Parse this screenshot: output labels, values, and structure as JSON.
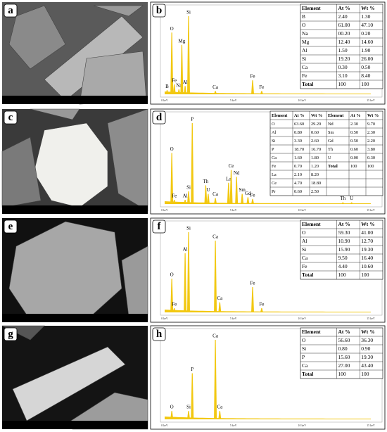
{
  "images": [
    {
      "letter": "a"
    },
    {
      "letter": "c"
    },
    {
      "letter": "e"
    },
    {
      "letter": "g"
    }
  ],
  "spectra": [
    {
      "letter": "b",
      "axis_labels": [
        "0 keV",
        "5 keV",
        "10 keV",
        "15 keV"
      ],
      "peak_labels": [
        "B",
        "O",
        "Fe",
        "Na",
        "Mg",
        "Al",
        "Si",
        "Ca",
        "Fe",
        "Fe"
      ],
      "table": {
        "header": [
          "Element",
          "At %",
          "Wt %"
        ],
        "rows": [
          [
            "B",
            "2.40",
            "1.30"
          ],
          [
            "O",
            "61.00",
            "47.10"
          ],
          [
            "Na",
            "00.20",
            "0.20"
          ],
          [
            "Mg",
            "12.40",
            "14.60"
          ],
          [
            "Al",
            "1.50",
            "1.90"
          ],
          [
            "Si",
            "19.20",
            "26.00"
          ],
          [
            "Ca",
            "0.30",
            "0.50"
          ],
          [
            "Fe",
            "3.10",
            "8.40"
          ],
          [
            "Total",
            "100",
            "100"
          ]
        ]
      }
    },
    {
      "letter": "d",
      "axis_labels": [
        "0 keV",
        "5 keV",
        "10 keV",
        "15 keV"
      ],
      "peak_labels": [
        "O",
        "Fe",
        "Al",
        "Si",
        "P",
        "Th",
        "U",
        "Ca",
        "La",
        "Ce",
        "Nd",
        "Sm",
        "Gd",
        "Fe",
        "Th",
        "U"
      ],
      "table": {
        "header": [
          "Element",
          "At %",
          "Wt %",
          "Element",
          "At %",
          "Wt %"
        ],
        "rows": [
          [
            "O",
            "63.60",
            "29.20",
            "Nd",
            "2.30",
            "9.70"
          ],
          [
            "Al",
            "0.80",
            "0.60",
            "Sm",
            "0.50",
            "2.30"
          ],
          [
            "Si",
            "3.30",
            "2.60",
            "Gd",
            "0.50",
            "2.20"
          ],
          [
            "P",
            "18.70",
            "16.70",
            "Th",
            "0.60",
            "3.80"
          ],
          [
            "Ca",
            "1.60",
            "1.80",
            "U",
            "0.00",
            "0.30"
          ],
          [
            "Fe",
            "0.70",
            "1.20",
            "Total",
            "100",
            "100"
          ],
          [
            "La",
            "2.10",
            "8.20"
          ],
          [
            "Ce",
            "4.70",
            "18.80"
          ],
          [
            "Pr",
            "0.60",
            "2.50"
          ]
        ]
      }
    },
    {
      "letter": "f",
      "axis_labels": [
        "0 keV",
        "5 keV",
        "10 keV",
        "15 keV"
      ],
      "peak_labels": [
        "O",
        "Fe",
        "Al",
        "Si",
        "Ca",
        "Ca",
        "Fe",
        "Fe"
      ],
      "table": {
        "header": [
          "Element",
          "At %",
          "Wt %"
        ],
        "rows": [
          [
            "O",
            "59.30",
            "41.00"
          ],
          [
            "Al",
            "10.90",
            "12.70"
          ],
          [
            "Si",
            "15.90",
            "19.30"
          ],
          [
            "Ca",
            "9.50",
            "16.40"
          ],
          [
            "Fe",
            "4.40",
            "10.60"
          ],
          [
            "Total",
            "100",
            "100"
          ]
        ]
      }
    },
    {
      "letter": "h",
      "axis_labels": [
        "0 keV",
        "5 keV",
        "10 keV",
        "15 keV"
      ],
      "peak_labels": [
        "O",
        "Si",
        "P",
        "Ca",
        "Ca"
      ],
      "table": {
        "header": [
          "Element",
          "At %",
          "Wt %"
        ],
        "rows": [
          [
            "O",
            "56.60",
            "36.30"
          ],
          [
            "Si",
            "0.80",
            "0.90"
          ],
          [
            "P",
            "15.60",
            "19.30"
          ],
          [
            "Ca",
            "27.00",
            "43.40"
          ],
          [
            "Total",
            "100",
            "100"
          ]
        ]
      }
    }
  ]
}
